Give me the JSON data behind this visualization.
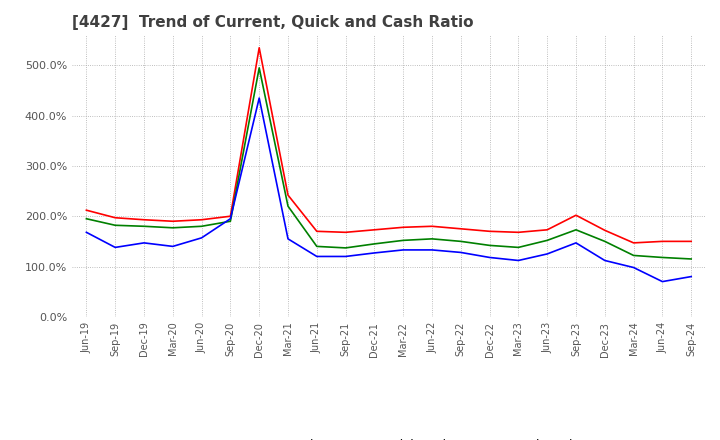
{
  "title": "[4427]  Trend of Current, Quick and Cash Ratio",
  "title_color": "#404040",
  "background_color": "#ffffff",
  "plot_bg_color": "#ffffff",
  "grid_color": "#aaaaaa",
  "ylim": [
    0.0,
    5.6
  ],
  "yticks": [
    0.0,
    1.0,
    2.0,
    3.0,
    4.0,
    5.0
  ],
  "ytick_labels": [
    "0.0%",
    "100.0%",
    "200.0%",
    "300.0%",
    "400.0%",
    "500.0%"
  ],
  "x_labels": [
    "Jun-19",
    "Sep-19",
    "Dec-19",
    "Mar-20",
    "Jun-20",
    "Sep-20",
    "Dec-20",
    "Mar-21",
    "Jun-21",
    "Sep-21",
    "Dec-21",
    "Mar-22",
    "Jun-22",
    "Sep-22",
    "Dec-22",
    "Mar-23",
    "Jun-23",
    "Sep-23",
    "Dec-23",
    "Mar-24",
    "Jun-24",
    "Sep-24"
  ],
  "current_ratio": [
    2.12,
    1.97,
    1.93,
    1.9,
    1.93,
    2.0,
    5.35,
    2.42,
    1.7,
    1.68,
    1.73,
    1.78,
    1.8,
    1.75,
    1.7,
    1.68,
    1.73,
    2.02,
    1.72,
    1.47,
    1.5,
    1.5
  ],
  "quick_ratio": [
    1.95,
    1.82,
    1.8,
    1.77,
    1.8,
    1.9,
    4.95,
    2.2,
    1.4,
    1.37,
    1.45,
    1.52,
    1.55,
    1.5,
    1.42,
    1.38,
    1.52,
    1.73,
    1.5,
    1.22,
    1.18,
    1.15
  ],
  "cash_ratio": [
    1.68,
    1.38,
    1.47,
    1.4,
    1.57,
    1.95,
    4.35,
    1.55,
    1.2,
    1.2,
    1.27,
    1.33,
    1.33,
    1.28,
    1.18,
    1.12,
    1.25,
    1.47,
    1.12,
    0.98,
    0.7,
    0.8
  ],
  "current_color": "#ff0000",
  "quick_color": "#008000",
  "cash_color": "#0000ff",
  "line_width": 1.2,
  "legend_labels": [
    "Current Ratio",
    "Quick Ratio",
    "Cash Ratio"
  ]
}
